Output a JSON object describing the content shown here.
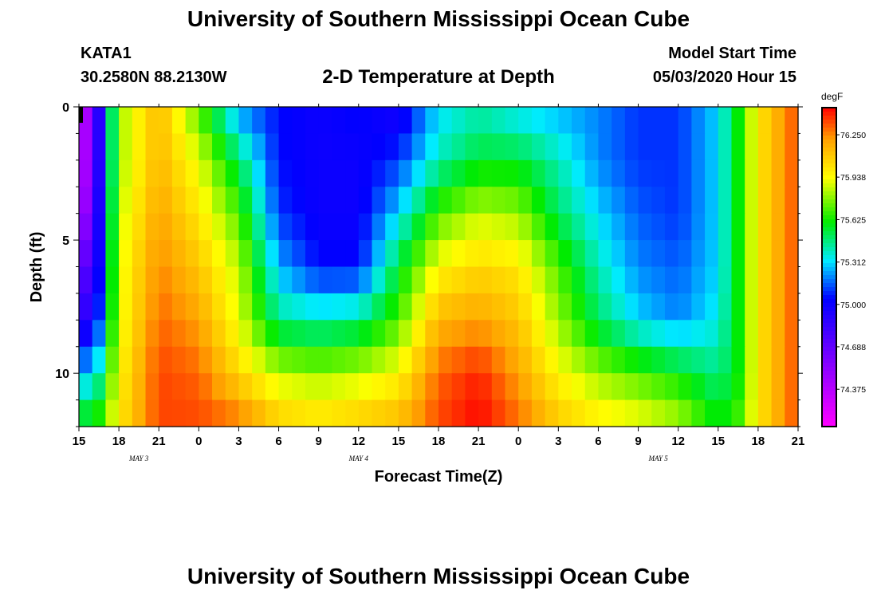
{
  "header": {
    "title": "University of Southern Mississippi Ocean Cube",
    "station": "KATA1",
    "coordinates": "30.2580N 88.2130W",
    "chart_title": "2-D Temperature at Depth",
    "model_start_label": "Model Start Time",
    "model_start_value": "05/03/2020 Hour 15"
  },
  "footer": {
    "title": "University of Southern Mississippi Ocean Cube"
  },
  "chart_data": {
    "type": "heatmap",
    "title": "2-D Temperature at Depth",
    "xlabel": "Forecast Time(Z)",
    "ylabel": "Depth (ft)",
    "x_hours": [
      0,
      54
    ],
    "x_ticks": [
      "15",
      "18",
      "21",
      "0",
      "3",
      "6",
      "9",
      "12",
      "15",
      "18",
      "21",
      "0",
      "3",
      "6",
      "9",
      "12",
      "15",
      "18",
      "21"
    ],
    "date_labels": [
      {
        "text": "MAY 3",
        "hour": 4.5
      },
      {
        "text": "MAY 4",
        "hour": 21
      },
      {
        "text": "MAY 5",
        "hour": 43.5
      }
    ],
    "y_ticks": [
      0,
      5,
      10
    ],
    "ylim": [
      0,
      12
    ],
    "colorbar": {
      "unit": "degF",
      "range": [
        74.1,
        76.45
      ],
      "ticks": [
        "76.250",
        "75.938",
        "75.625",
        "75.312",
        "75.000",
        "74.688",
        "74.375"
      ]
    },
    "temperature_anchors": {
      "hours": [
        0,
        1.5,
        3,
        6,
        9,
        12,
        15,
        18,
        21,
        24,
        27,
        30,
        33,
        36,
        39,
        42,
        45,
        48,
        49.5,
        51,
        54
      ],
      "depths": [
        0,
        2,
        4,
        6,
        8,
        10,
        12
      ],
      "values": [
        [
          74.2,
          74.9,
          75.8,
          76.15,
          75.7,
          75.2,
          75.05,
          75.0,
          75.05,
          74.95,
          75.3,
          75.4,
          75.3,
          75.25,
          75.2,
          75.1,
          75.1,
          75.3,
          75.6,
          76.0,
          76.35
        ],
        [
          74.2,
          74.9,
          75.8,
          76.15,
          75.9,
          75.5,
          75.05,
          75.0,
          75.0,
          75.1,
          75.4,
          75.55,
          75.55,
          75.4,
          75.2,
          75.1,
          75.1,
          75.3,
          75.6,
          76.0,
          76.35
        ],
        [
          74.3,
          74.95,
          75.85,
          76.2,
          76.0,
          75.7,
          75.1,
          75.0,
          75.0,
          75.3,
          75.7,
          75.85,
          75.8,
          75.5,
          75.3,
          75.15,
          75.1,
          75.3,
          75.6,
          76.0,
          76.35
        ],
        [
          74.6,
          75.0,
          75.9,
          76.25,
          76.1,
          75.85,
          75.25,
          75.05,
          75.05,
          75.55,
          75.95,
          76.05,
          76.0,
          75.7,
          75.4,
          75.2,
          75.15,
          75.3,
          75.6,
          76.0,
          76.35
        ],
        [
          74.8,
          75.1,
          75.9,
          76.3,
          76.2,
          75.9,
          75.45,
          75.4,
          75.45,
          75.7,
          76.15,
          76.2,
          76.1,
          75.8,
          75.5,
          75.3,
          75.2,
          75.35,
          75.6,
          76.0,
          76.35
        ],
        [
          75.2,
          75.4,
          75.95,
          76.35,
          76.3,
          76.05,
          75.85,
          75.8,
          75.85,
          75.95,
          76.3,
          76.4,
          76.2,
          75.95,
          75.8,
          75.7,
          75.6,
          75.45,
          75.6,
          76.0,
          76.35
        ],
        [
          75.6,
          75.7,
          76.0,
          76.35,
          76.35,
          76.3,
          76.1,
          76.05,
          76.1,
          76.15,
          76.35,
          76.45,
          76.3,
          76.1,
          76.0,
          75.95,
          75.85,
          75.6,
          75.7,
          76.0,
          76.35
        ]
      ]
    }
  }
}
